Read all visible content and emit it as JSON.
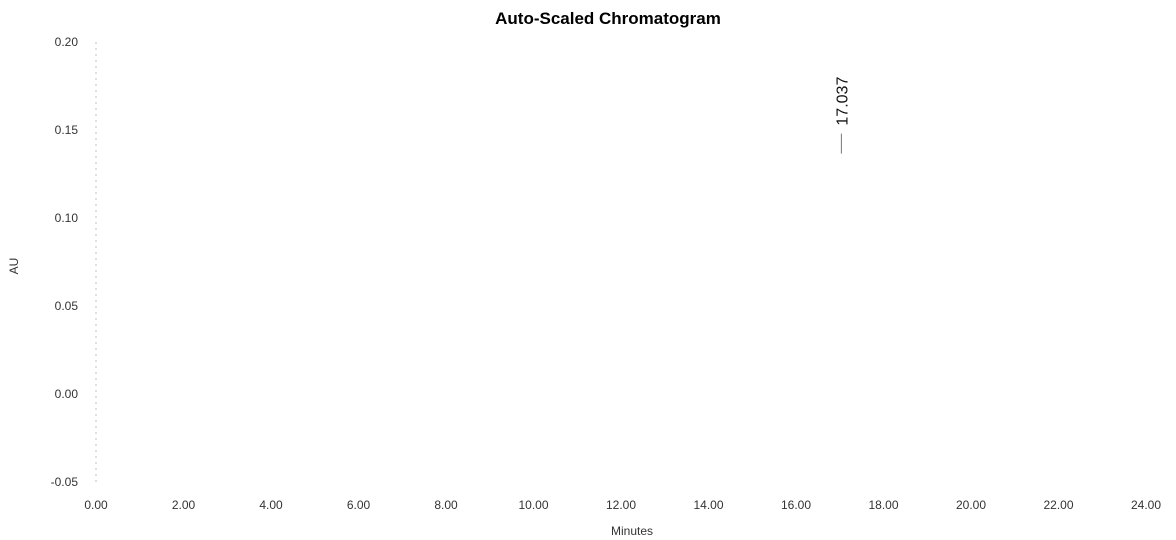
{
  "chart_data": {
    "type": "line",
    "title": "Auto-Scaled Chromatogram",
    "xlabel": "Minutes",
    "ylabel": "AU",
    "xlim": [
      0,
      24
    ],
    "ylim": [
      -0.05,
      0.2
    ],
    "x_ticks": [
      "0.00",
      "2.00",
      "4.00",
      "6.00",
      "8.00",
      "10.00",
      "12.00",
      "14.00",
      "16.00",
      "18.00",
      "20.00",
      "22.00",
      "24.00"
    ],
    "y_ticks": [
      "0.20",
      "0.15",
      "0.10",
      "0.05",
      "0.00",
      "-0.05"
    ],
    "grid": false,
    "annotations": [
      {
        "text": "17.037",
        "x": 17.037,
        "y": 0.14
      }
    ]
  }
}
